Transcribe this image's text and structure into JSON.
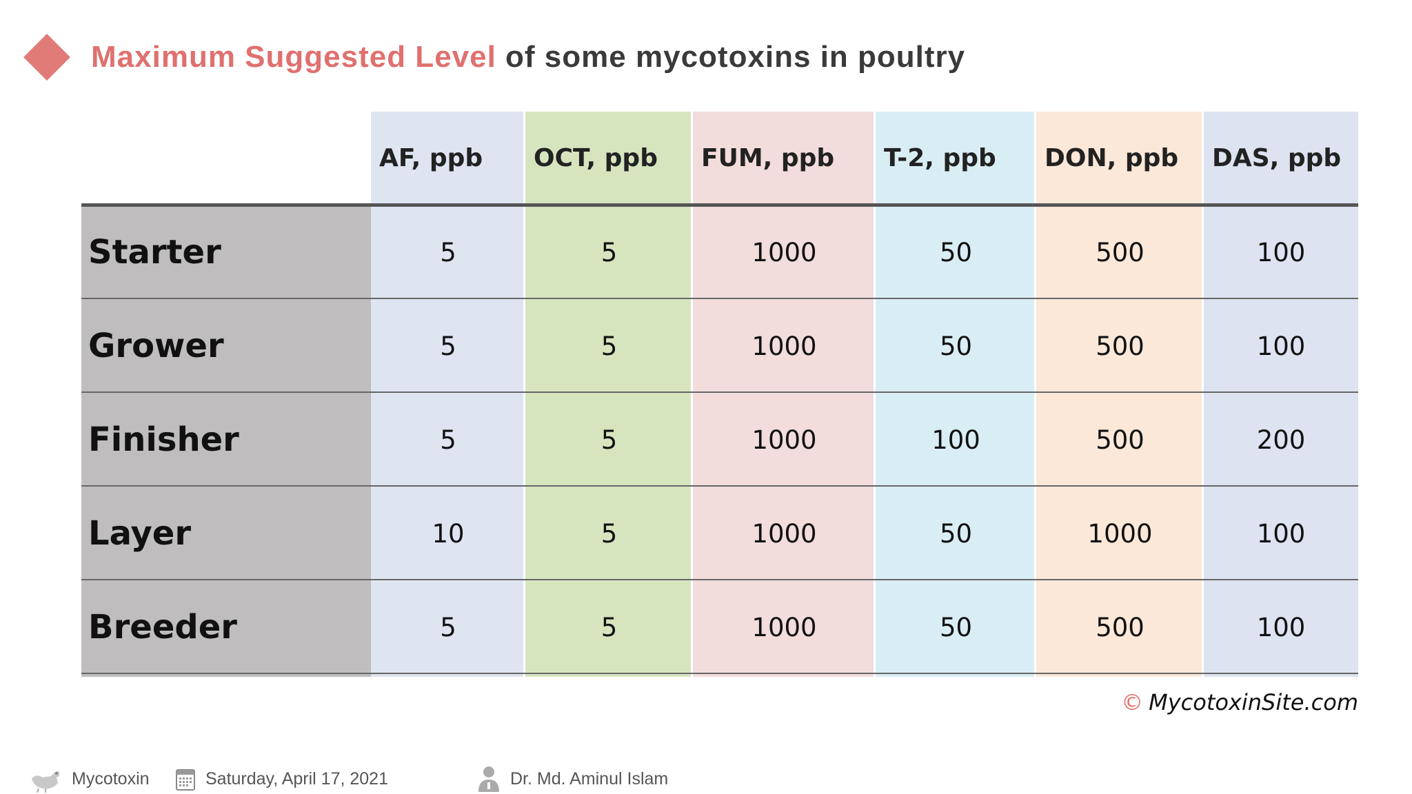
{
  "title": {
    "accent": "Maximum Suggested Level",
    "rest": " of some mycotoxins in poultry"
  },
  "table": {
    "columns": [
      {
        "label": "AF, ppb",
        "color": "#dfe4f1"
      },
      {
        "label": "OCT, ppb",
        "color": "#d7e5bf"
      },
      {
        "label": "FUM, ppb",
        "color": "#f2dcdc"
      },
      {
        "label": "T-2, ppb",
        "color": "#d9eef4"
      },
      {
        "label": "DON, ppb",
        "color": "#fbe8d8"
      },
      {
        "label": "DAS, ppb",
        "color": "#dde3f0"
      }
    ],
    "rows": [
      {
        "label": "Starter",
        "values": [
          "5",
          "5",
          "1000",
          "50",
          "500",
          "100"
        ]
      },
      {
        "label": "Grower",
        "values": [
          "5",
          "5",
          "1000",
          "50",
          "500",
          "100"
        ]
      },
      {
        "label": "Finisher",
        "values": [
          "5",
          "5",
          "1000",
          "100",
          "500",
          "200"
        ]
      },
      {
        "label": "Layer",
        "values": [
          "10",
          "5",
          "1000",
          "50",
          "1000",
          "100"
        ]
      },
      {
        "label": "Breeder",
        "values": [
          "5",
          "5",
          "1000",
          "50",
          "500",
          "100"
        ]
      }
    ]
  },
  "copyright": {
    "symbol": "©",
    "text": "MycotoxinSite.com"
  },
  "footer": {
    "category": "Mycotoxin",
    "date": "Saturday, April 17, 2021",
    "author": "Dr. Md. Aminul Islam",
    "icons": [
      "rooster-icon",
      "calendar-icon",
      "person-icon"
    ]
  }
}
